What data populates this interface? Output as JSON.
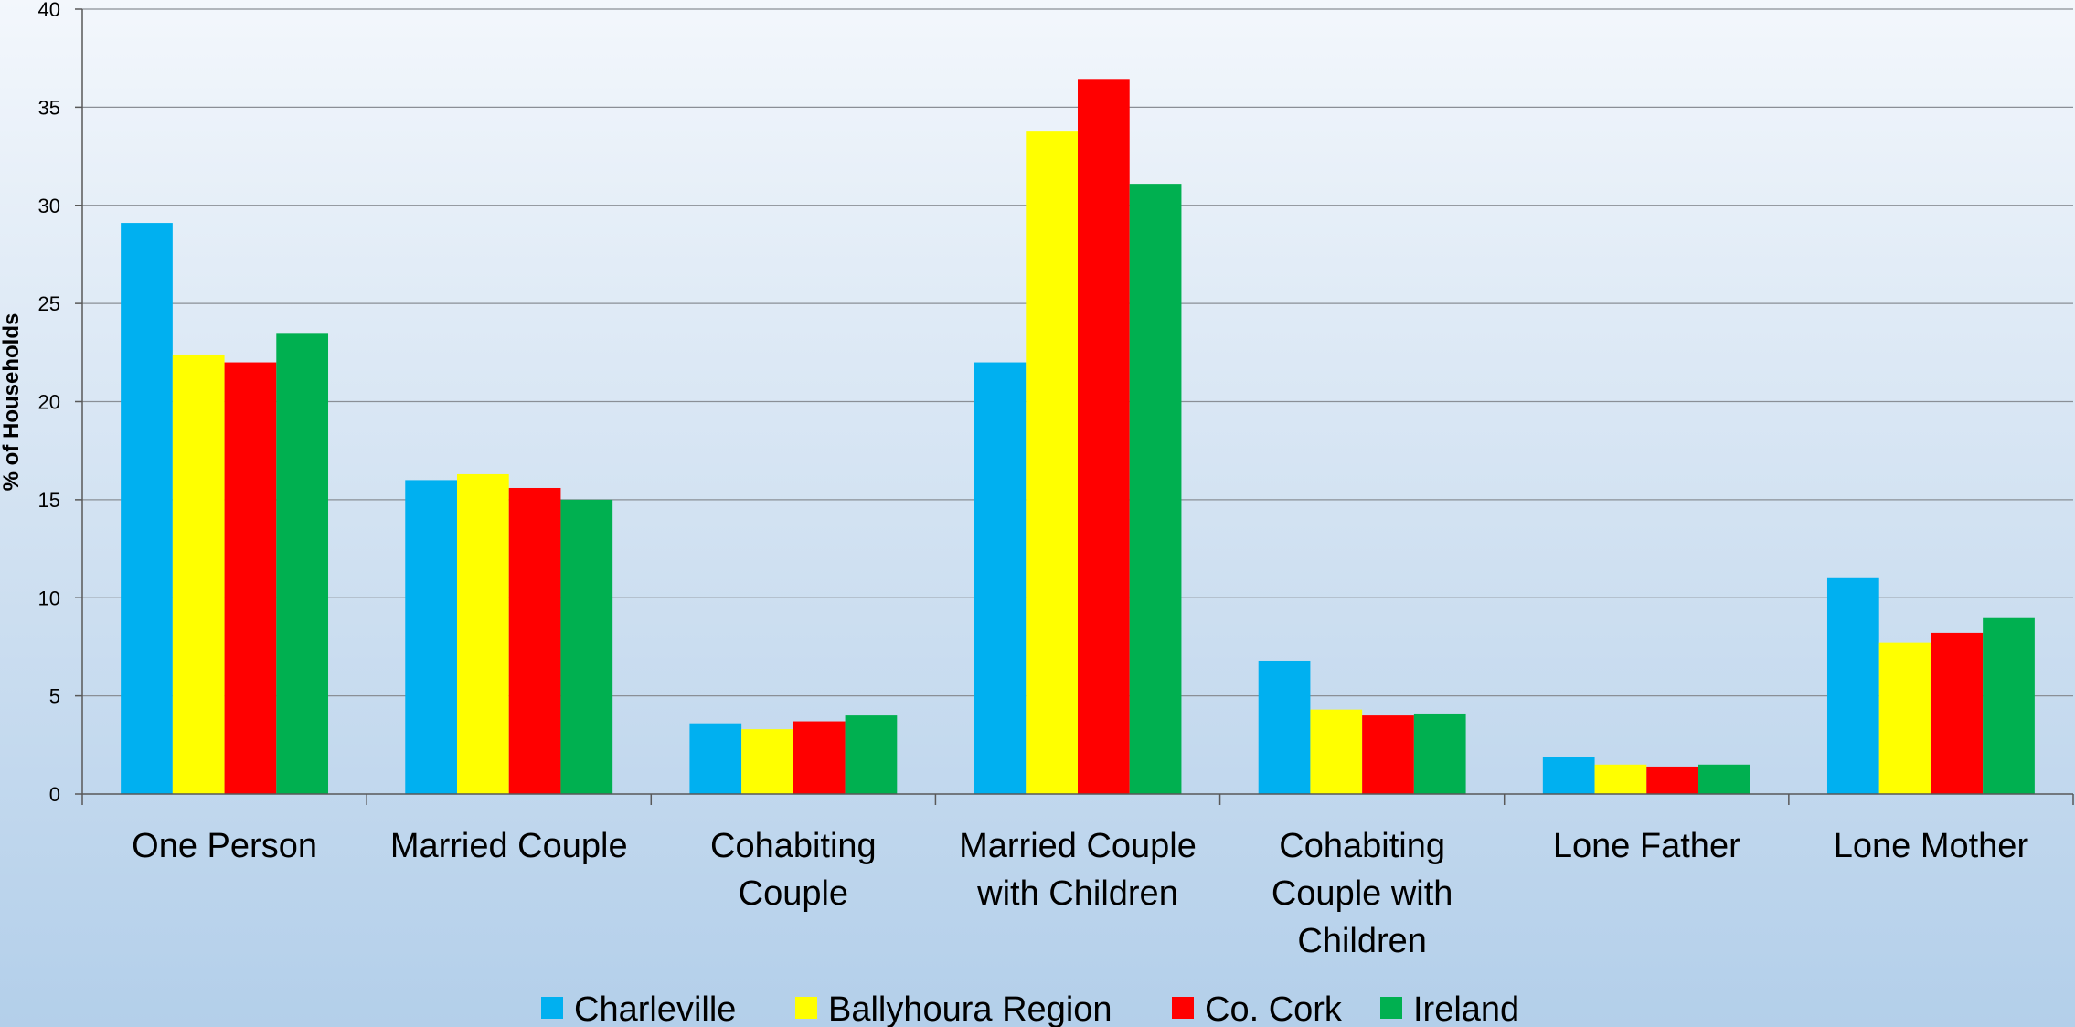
{
  "chart_data": {
    "type": "bar",
    "ylabel": "% of Households",
    "ylim": [
      0,
      40
    ],
    "yticks": [
      0,
      5,
      10,
      15,
      20,
      25,
      30,
      35,
      40
    ],
    "grid": true,
    "legend_position": "bottom",
    "categories": [
      [
        "One Person"
      ],
      [
        "Married Couple"
      ],
      [
        "Cohabiting",
        "Couple"
      ],
      [
        "Married Couple",
        "with Children"
      ],
      [
        "Cohabiting",
        "Couple with",
        "Children"
      ],
      [
        "Lone Father"
      ],
      [
        "Lone Mother"
      ]
    ],
    "series": [
      {
        "name": "Charleville",
        "color": "#00b0f0",
        "values": [
          29.1,
          16.0,
          3.6,
          22.0,
          6.8,
          1.9,
          11.0
        ]
      },
      {
        "name": "Ballyhoura Region",
        "color": "#ffff00",
        "values": [
          22.4,
          16.3,
          3.3,
          33.8,
          4.3,
          1.5,
          7.7
        ]
      },
      {
        "name": "Co. Cork",
        "color": "#ff0000",
        "values": [
          22.0,
          15.6,
          3.7,
          36.4,
          4.0,
          1.4,
          8.2
        ]
      },
      {
        "name": "Ireland",
        "color": "#00b050",
        "values": [
          23.5,
          15.0,
          4.0,
          31.1,
          4.1,
          1.5,
          9.0
        ]
      }
    ]
  }
}
